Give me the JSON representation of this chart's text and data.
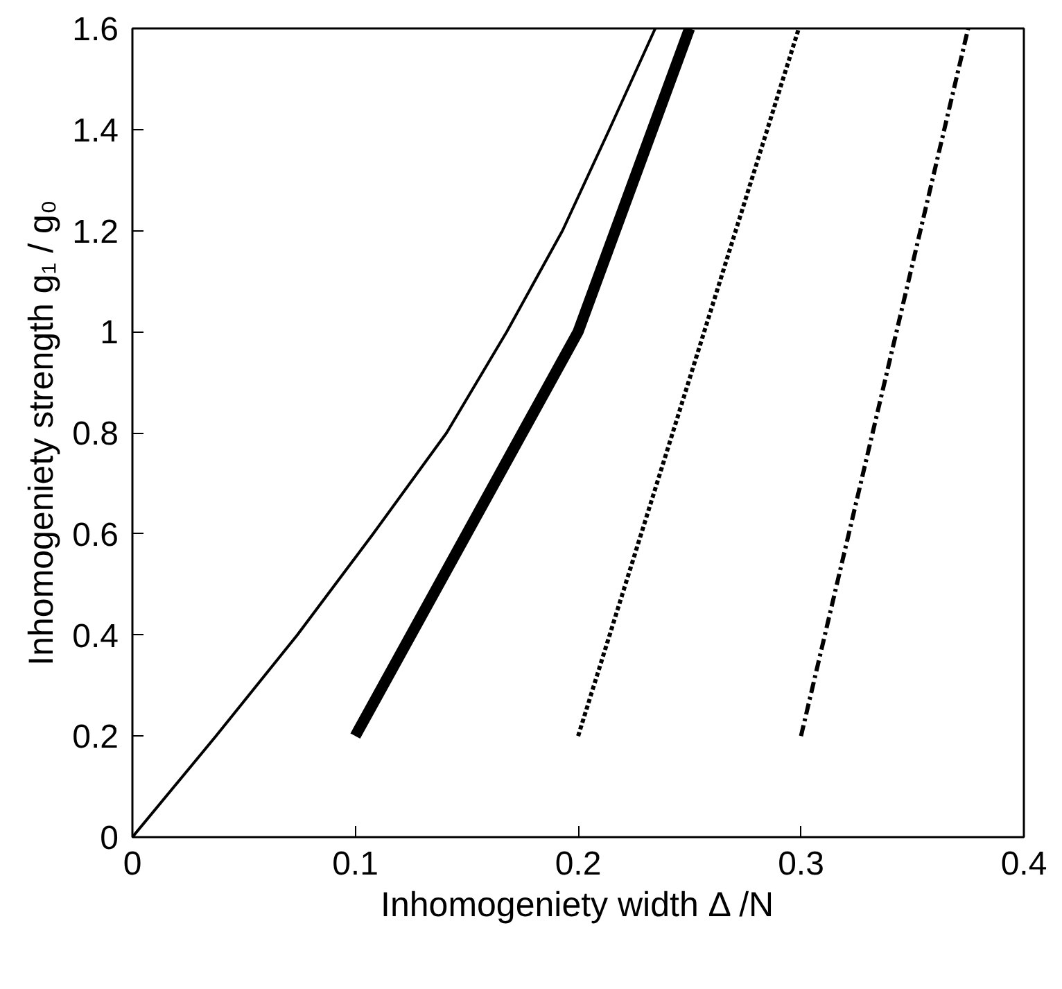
{
  "chart_data": {
    "type": "line",
    "xlabel": "Inhomogeniety width Δ /N",
    "ylabel": "Inhomogeniety strength g₁ / g₀",
    "xlim": [
      0,
      0.4
    ],
    "ylim": [
      0,
      1.6
    ],
    "xticks": [
      0,
      0.1,
      0.2,
      0.3,
      0.4
    ],
    "yticks": [
      0,
      0.2,
      0.4,
      0.6,
      0.8,
      1,
      1.2,
      1.4,
      1.6
    ],
    "grid": false,
    "marker": "none",
    "series": [
      {
        "color": "#000000",
        "line_style": "solid",
        "x": [
          0,
          0.0375,
          0.074,
          0.108,
          0.141,
          0.168,
          0.193,
          0.214,
          0.2346
        ],
        "values": [
          0,
          0.2,
          0.4,
          0.6,
          0.8,
          1.0,
          1.2,
          1.4,
          1.6
        ]
      },
      {
        "color": "#000000",
        "line_style": "solid",
        "x": [
          0.1,
          0.2,
          0.25
        ],
        "values": [
          0.2,
          1.0,
          1.6
        ]
      },
      {
        "color": "#000000",
        "line_style": "dotted",
        "x": [
          0.2,
          0.299
        ],
        "values": [
          0.2,
          1.6
        ]
      },
      {
        "color": "#000000",
        "line_style": "dashdot",
        "x": [
          0.3,
          0.375
        ],
        "values": [
          0.2,
          1.6
        ]
      }
    ]
  }
}
